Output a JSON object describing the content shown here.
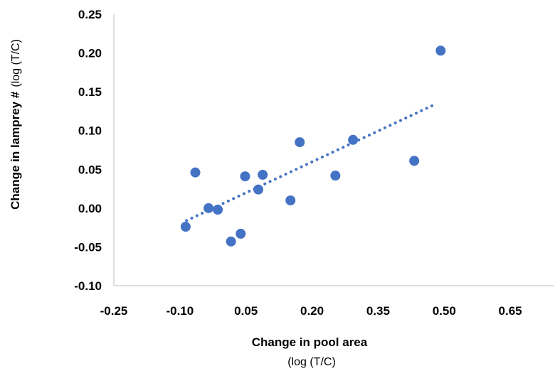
{
  "chart_data": {
    "type": "scatter",
    "title": "",
    "xlabel": "Change in pool area",
    "xlabel_sub": "(log (T/C)",
    "ylabel": "Change in lamprey #",
    "ylabel_sub": "(log (T/C)",
    "xlim": [
      -0.25,
      0.75
    ],
    "ylim": [
      -0.1,
      0.25
    ],
    "xticks": [
      -0.25,
      -0.1,
      0.05,
      0.2,
      0.35,
      0.5,
      0.65
    ],
    "xtick_labels": [
      "-0.25",
      "-0.10",
      "0.05",
      "0.20",
      "0.35",
      "0.50",
      "0.65"
    ],
    "yticks": [
      -0.1,
      -0.05,
      0.0,
      0.05,
      0.1,
      0.15,
      0.2,
      0.25
    ],
    "ytick_labels": [
      "-0.10",
      "-0.05",
      "0.00",
      "0.05",
      "0.10",
      "0.15",
      "0.20",
      "0.25"
    ],
    "grid": false,
    "legend": "none",
    "marker_color": "#4472C4",
    "trendline": {
      "type": "linear",
      "style": "dotted",
      "color": "#4472C4",
      "x": [
        -0.085,
        0.48
      ],
      "y": [
        -0.016,
        0.134
      ]
    },
    "points": [
      {
        "x": -0.087,
        "y": -0.024
      },
      {
        "x": -0.065,
        "y": 0.046
      },
      {
        "x": -0.035,
        "y": 0.0
      },
      {
        "x": -0.014,
        "y": -0.002
      },
      {
        "x": 0.016,
        "y": -0.043
      },
      {
        "x": 0.038,
        "y": -0.033
      },
      {
        "x": 0.048,
        "y": 0.041
      },
      {
        "x": 0.078,
        "y": 0.024
      },
      {
        "x": 0.088,
        "y": 0.043
      },
      {
        "x": 0.151,
        "y": 0.01
      },
      {
        "x": 0.172,
        "y": 0.085
      },
      {
        "x": 0.253,
        "y": 0.042
      },
      {
        "x": 0.293,
        "y": 0.088
      },
      {
        "x": 0.432,
        "y": 0.061
      },
      {
        "x": 0.492,
        "y": 0.203
      }
    ]
  }
}
